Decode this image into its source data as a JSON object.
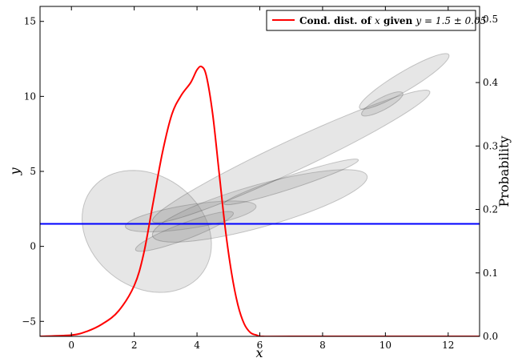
{
  "chart_data": {
    "type": "line",
    "title": "",
    "xlabel": "x",
    "ylabel": "y",
    "y2label": "Probability",
    "xlim": [
      -1,
      13
    ],
    "ylim": [
      -6,
      16
    ],
    "y2lim": [
      0,
      0.52
    ],
    "xticks": [
      0,
      2,
      4,
      6,
      8,
      10,
      12
    ],
    "yticks": [
      -5,
      0,
      5,
      10,
      15
    ],
    "y2ticks": [
      0.0,
      0.1,
      0.2,
      0.3,
      0.4,
      0.5
    ],
    "xtick_labels": [
      "0",
      "2",
      "4",
      "6",
      "8",
      "10",
      "12"
    ],
    "ytick_labels": [
      "−5",
      "0",
      "5",
      "10",
      "15"
    ],
    "y2tick_labels": [
      "0.0",
      "0.1",
      "0.2",
      "0.3",
      "0.4",
      "0.5"
    ],
    "grid": false,
    "legend": {
      "position": "top-right",
      "label_prefix": "Cond. dist. of ",
      "label_var": "x",
      "label_mid": " given ",
      "label_cond": "y = 1.5 ± 0.05"
    },
    "hline": {
      "y": 1.5,
      "color": "#0000ff"
    },
    "ellipses": [
      {
        "cx": 2.4,
        "cy": 1.0,
        "rx": 2.0,
        "ry": 4.1,
        "angle_deg": 8
      },
      {
        "cx": 3.8,
        "cy": 2.0,
        "rx": 2.2,
        "ry": 0.75,
        "angle_deg": 20
      },
      {
        "cx": 3.6,
        "cy": 1.0,
        "rx": 2.0,
        "ry": 0.45,
        "angle_deg": 40
      },
      {
        "cx": 6.0,
        "cy": 2.7,
        "rx": 4.0,
        "ry": 1.25,
        "angle_deg": 33
      },
      {
        "cx": 7.0,
        "cy": 4.3,
        "rx": 2.6,
        "ry": 0.38,
        "angle_deg": 35
      },
      {
        "cx": 7.0,
        "cy": 6.0,
        "rx": 6.2,
        "ry": 0.8,
        "angle_deg": 45
      },
      {
        "cx": 9.9,
        "cy": 9.5,
        "rx": 1.0,
        "ry": 0.3,
        "angle_deg": 52
      },
      {
        "cx": 10.6,
        "cy": 11.0,
        "rx": 2.3,
        "ry": 0.45,
        "angle_deg": 53
      }
    ],
    "series": [
      {
        "name": "Cond. dist. of x given y = 1.5 ± 0.05",
        "axis": "y2",
        "color": "#ff0000",
        "x": [
          -1.0,
          0.0,
          0.5,
          1.0,
          1.5,
          2.0,
          2.3,
          2.6,
          2.9,
          3.2,
          3.5,
          3.8,
          4.0,
          4.15,
          4.3,
          4.5,
          4.7,
          4.9,
          5.1,
          5.3,
          5.5,
          5.7,
          5.9,
          6.1,
          7.0,
          13.0
        ],
        "values": [
          0.0,
          0.002,
          0.008,
          0.02,
          0.04,
          0.08,
          0.13,
          0.21,
          0.29,
          0.35,
          0.38,
          0.4,
          0.42,
          0.425,
          0.41,
          0.35,
          0.26,
          0.17,
          0.1,
          0.05,
          0.02,
          0.006,
          0.002,
          0.0,
          0.0,
          0.0
        ]
      }
    ]
  }
}
